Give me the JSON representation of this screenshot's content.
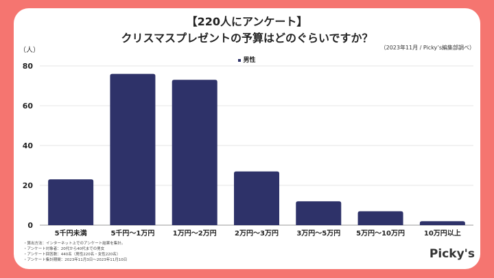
{
  "colors": {
    "background": "#f57570",
    "bar": "#2e3269"
  },
  "chart_data": {
    "type": "bar",
    "title": "【220人にアンケート】",
    "subtitle": "クリスマスプレゼントの予算はどのぐらいですか？",
    "ylabel": "（人）",
    "source": "（2023年11月 / Picky’s編集部調べ）",
    "categories": [
      "5千円未満",
      "5千円〜1万円",
      "1万円〜2万円",
      "2万円〜3万円",
      "3万円〜5万円",
      "5万円〜10万円",
      "10万円以上"
    ],
    "series": [
      {
        "name": "男性",
        "values": [
          23,
          76,
          73,
          27,
          12,
          7,
          2
        ]
      }
    ],
    "ylim": [
      0,
      80
    ],
    "yticks": [
      0,
      20,
      40,
      60,
      80
    ],
    "grid": true,
    "legend": "top-center"
  },
  "notes": [
    "・算出方法：インターネット上でのアンケート結果を集計。",
    "・アンケート対象者：20代から40代までの男女",
    "・アンケート回答数：440名（男性220名・女性220名）",
    "・アンケート集計期間：2023年11月3日〜2023年11月10日"
  ],
  "logo": "Picky's"
}
